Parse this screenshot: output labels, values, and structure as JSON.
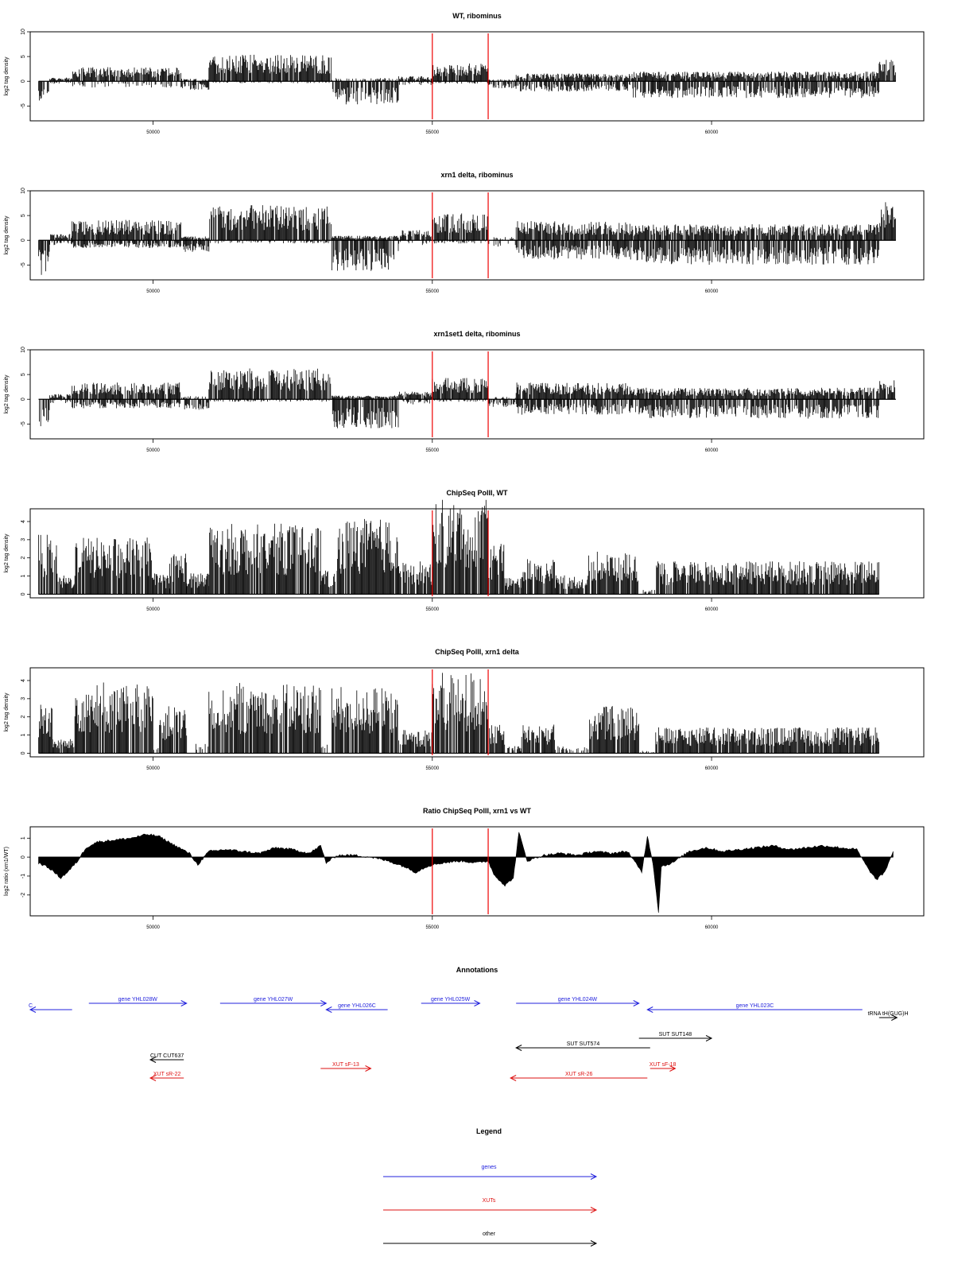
{
  "chart_data": [
    {
      "type": "bar",
      "title": "WT, ribominus",
      "xlabel": "",
      "ylabel": "log2 tag density",
      "xlim": [
        47800,
        63800
      ],
      "ylim": [
        -8,
        10
      ],
      "yticks": [
        -5,
        0,
        5,
        10
      ],
      "xticks": [
        50000,
        55000,
        60000
      ],
      "markers": [
        55000,
        56000
      ],
      "tick_labels": [
        "-5",
        "0",
        "5",
        "10",
        "50000",
        "55000",
        "60000"
      ],
      "segments": [
        {
          "start": 47950,
          "end": 48150,
          "pos": 0,
          "neg": -3.0
        },
        {
          "start": 48150,
          "end": 48550,
          "pos": 0.6,
          "neg": -0.5
        },
        {
          "start": 48550,
          "end": 50500,
          "pos": 2.2,
          "neg": -1.0
        },
        {
          "start": 50500,
          "end": 51000,
          "pos": 0.4,
          "neg": -1.4
        },
        {
          "start": 51000,
          "end": 53200,
          "pos": 4.2,
          "neg": -0.3
        },
        {
          "start": 53200,
          "end": 54400,
          "pos": 0.5,
          "neg": -3.6
        },
        {
          "start": 54400,
          "end": 55000,
          "pos": 0.8,
          "neg": -0.6
        },
        {
          "start": 55000,
          "end": 56000,
          "pos": 2.8,
          "neg": -0.4
        },
        {
          "start": 56000,
          "end": 56500,
          "pos": 0.3,
          "neg": -1.2
        },
        {
          "start": 56500,
          "end": 58600,
          "pos": 1.2,
          "neg": -1.6
        },
        {
          "start": 58600,
          "end": 63000,
          "pos": 1.5,
          "neg": -2.6
        },
        {
          "start": 63000,
          "end": 63300,
          "pos": 3.5,
          "neg": 0
        }
      ]
    },
    {
      "type": "bar",
      "title": "xrn1 delta, ribominus",
      "xlabel": "",
      "ylabel": "log2 tag density",
      "xlim": [
        47800,
        63800
      ],
      "ylim": [
        -8,
        10
      ],
      "yticks": [
        -5,
        0,
        5,
        10
      ],
      "xticks": [
        50000,
        55000,
        60000
      ],
      "markers": [
        55000,
        56000
      ],
      "tick_labels": [
        "-5",
        "0",
        "5",
        "10",
        "50000",
        "55000",
        "60000"
      ],
      "segments": [
        {
          "start": 47950,
          "end": 48150,
          "pos": 0,
          "neg": -5.5
        },
        {
          "start": 48150,
          "end": 48550,
          "pos": 1.0,
          "neg": -0.8
        },
        {
          "start": 48550,
          "end": 50500,
          "pos": 3.2,
          "neg": -1.2
        },
        {
          "start": 50500,
          "end": 51000,
          "pos": 0.6,
          "neg": -1.8
        },
        {
          "start": 51000,
          "end": 53200,
          "pos": 5.5,
          "neg": -0.5
        },
        {
          "start": 53200,
          "end": 54400,
          "pos": 0.7,
          "neg": -4.8
        },
        {
          "start": 54400,
          "end": 55000,
          "pos": 1.6,
          "neg": -0.8
        },
        {
          "start": 55000,
          "end": 56000,
          "pos": 4.2,
          "neg": -0.5
        },
        {
          "start": 56000,
          "end": 56500,
          "pos": 0.5,
          "neg": -1.0
        },
        {
          "start": 56500,
          "end": 58600,
          "pos": 3.0,
          "neg": -3.0
        },
        {
          "start": 58600,
          "end": 63000,
          "pos": 2.5,
          "neg": -3.8
        },
        {
          "start": 63000,
          "end": 63300,
          "pos": 6.0,
          "neg": 0
        }
      ]
    },
    {
      "type": "bar",
      "title": "xrn1set1 delta, ribominus",
      "xlabel": "",
      "ylabel": "log2 tag density",
      "xlim": [
        47800,
        63800
      ],
      "ylim": [
        -8,
        10
      ],
      "yticks": [
        -5,
        0,
        5,
        10
      ],
      "xticks": [
        50000,
        55000,
        60000
      ],
      "markers": [
        55000,
        56000
      ],
      "tick_labels": [
        "-5",
        "0",
        "5",
        "10",
        "50000",
        "55000",
        "60000"
      ],
      "segments": [
        {
          "start": 47950,
          "end": 48150,
          "pos": 0,
          "neg": -4.5
        },
        {
          "start": 48150,
          "end": 48550,
          "pos": 0.8,
          "neg": -0.6
        },
        {
          "start": 48550,
          "end": 50500,
          "pos": 2.6,
          "neg": -1.4
        },
        {
          "start": 50500,
          "end": 51000,
          "pos": 0.5,
          "neg": -1.8
        },
        {
          "start": 51000,
          "end": 53200,
          "pos": 4.8,
          "neg": -0.4
        },
        {
          "start": 53200,
          "end": 54400,
          "pos": 0.6,
          "neg": -4.5
        },
        {
          "start": 54400,
          "end": 55000,
          "pos": 1.2,
          "neg": -0.8
        },
        {
          "start": 55000,
          "end": 56000,
          "pos": 3.4,
          "neg": -0.4
        },
        {
          "start": 56000,
          "end": 56500,
          "pos": 0.4,
          "neg": -1.2
        },
        {
          "start": 56500,
          "end": 58600,
          "pos": 2.6,
          "neg": -2.4
        },
        {
          "start": 58600,
          "end": 63000,
          "pos": 1.8,
          "neg": -3.0
        },
        {
          "start": 63000,
          "end": 63300,
          "pos": 3.0,
          "neg": 0
        }
      ]
    },
    {
      "type": "bar",
      "title": "ChipSeq PolII, WT",
      "xlabel": "",
      "ylabel": "log2 tag density",
      "xlim": [
        47800,
        63800
      ],
      "ylim": [
        -0.2,
        4.7
      ],
      "yticks": [
        0,
        1,
        2,
        3,
        4
      ],
      "xticks": [
        50000,
        55000,
        60000
      ],
      "markers": [
        55000,
        56000
      ],
      "tick_labels": [
        "0",
        "1",
        "2",
        "3",
        "4",
        "50000",
        "55000",
        "60000"
      ],
      "segments": [
        {
          "start": 47950,
          "end": 48300,
          "pos": 2.6,
          "neg": 0
        },
        {
          "start": 48300,
          "end": 48600,
          "pos": 0.8,
          "neg": 0
        },
        {
          "start": 48600,
          "end": 50000,
          "pos": 2.4,
          "neg": 0
        },
        {
          "start": 50000,
          "end": 50300,
          "pos": 0.9,
          "neg": 0
        },
        {
          "start": 50300,
          "end": 50600,
          "pos": 1.8,
          "neg": 0
        },
        {
          "start": 50600,
          "end": 51000,
          "pos": 0.9,
          "neg": 0
        },
        {
          "start": 51000,
          "end": 53000,
          "pos": 3.0,
          "neg": 0
        },
        {
          "start": 53000,
          "end": 53300,
          "pos": 1.0,
          "neg": 0
        },
        {
          "start": 53300,
          "end": 54400,
          "pos": 3.2,
          "neg": 0
        },
        {
          "start": 54400,
          "end": 55000,
          "pos": 1.4,
          "neg": 0
        },
        {
          "start": 55000,
          "end": 56000,
          "pos": 4.0,
          "neg": 0
        },
        {
          "start": 56000,
          "end": 56300,
          "pos": 2.2,
          "neg": 0
        },
        {
          "start": 56300,
          "end": 56600,
          "pos": 0.7,
          "neg": 0
        },
        {
          "start": 56600,
          "end": 57200,
          "pos": 1.6,
          "neg": 0
        },
        {
          "start": 57200,
          "end": 57800,
          "pos": 0.8,
          "neg": 0
        },
        {
          "start": 57800,
          "end": 58700,
          "pos": 1.8,
          "neg": 0
        },
        {
          "start": 58700,
          "end": 59000,
          "pos": 0.2,
          "neg": 0
        },
        {
          "start": 59000,
          "end": 63000,
          "pos": 1.4,
          "neg": 0
        }
      ]
    },
    {
      "type": "bar",
      "title": "ChipSeq PolII, xrn1 delta",
      "xlabel": "",
      "ylabel": "log2 tag density",
      "xlim": [
        47800,
        63800
      ],
      "ylim": [
        -0.2,
        4.7
      ],
      "yticks": [
        0,
        1,
        2,
        3,
        4
      ],
      "xticks": [
        50000,
        55000,
        60000
      ],
      "markers": [
        55000,
        56000
      ],
      "tick_labels": [
        "0",
        "1",
        "2",
        "3",
        "4",
        "50000",
        "55000",
        "60000"
      ],
      "segments": [
        {
          "start": 47950,
          "end": 48200,
          "pos": 2.2,
          "neg": 0
        },
        {
          "start": 48200,
          "end": 48600,
          "pos": 0.6,
          "neg": 0
        },
        {
          "start": 48600,
          "end": 50000,
          "pos": 3.0,
          "neg": 0
        },
        {
          "start": 50000,
          "end": 50100,
          "pos": 0.4,
          "neg": 0
        },
        {
          "start": 50100,
          "end": 50600,
          "pos": 2.0,
          "neg": 0
        },
        {
          "start": 50600,
          "end": 51000,
          "pos": 0.4,
          "neg": 0
        },
        {
          "start": 51000,
          "end": 53000,
          "pos": 3.0,
          "neg": 0
        },
        {
          "start": 53000,
          "end": 53200,
          "pos": 0.4,
          "neg": 0
        },
        {
          "start": 53200,
          "end": 54400,
          "pos": 2.8,
          "neg": 0
        },
        {
          "start": 54400,
          "end": 55000,
          "pos": 1.0,
          "neg": 0
        },
        {
          "start": 55000,
          "end": 56000,
          "pos": 3.4,
          "neg": 0
        },
        {
          "start": 56000,
          "end": 56300,
          "pos": 1.2,
          "neg": 0
        },
        {
          "start": 56300,
          "end": 56600,
          "pos": 0.3,
          "neg": 0
        },
        {
          "start": 56600,
          "end": 57200,
          "pos": 1.3,
          "neg": 0
        },
        {
          "start": 57200,
          "end": 57800,
          "pos": 0.3,
          "neg": 0
        },
        {
          "start": 57800,
          "end": 58700,
          "pos": 2.0,
          "neg": 0
        },
        {
          "start": 58700,
          "end": 59000,
          "pos": 0.1,
          "neg": 0
        },
        {
          "start": 59000,
          "end": 63000,
          "pos": 1.1,
          "neg": 0
        }
      ]
    },
    {
      "type": "area",
      "title": "Ratio ChipSeq PolII, xrn1 vs WT",
      "xlabel": "",
      "ylabel": "log2 ratio (xrn1/WT)",
      "xlim": [
        47800,
        63800
      ],
      "ylim": [
        -3.1,
        1.6
      ],
      "yticks": [
        -2,
        -1,
        0,
        1
      ],
      "xticks": [
        50000,
        55000,
        60000
      ],
      "markers": [
        55000,
        56000
      ],
      "tick_labels": [
        "-2",
        "-1",
        "0",
        "1",
        "50000",
        "55000",
        "60000"
      ],
      "x": [
        47950,
        48150,
        48350,
        48500,
        48650,
        48800,
        49000,
        49300,
        49600,
        49900,
        50100,
        50400,
        50650,
        50800,
        51000,
        51300,
        51600,
        51900,
        52200,
        52500,
        52800,
        53000,
        53100,
        53300,
        53600,
        53900,
        54200,
        54500,
        54700,
        54900,
        55000,
        55200,
        55500,
        55800,
        56000,
        56100,
        56300,
        56450,
        56550,
        56700,
        57000,
        57300,
        57600,
        57900,
        58200,
        58500,
        58750,
        58850,
        58950,
        59050,
        59100,
        59300,
        59600,
        59900,
        60200,
        60500,
        60800,
        61100,
        61400,
        61700,
        62000,
        62300,
        62600,
        62800,
        62950,
        63100,
        63250
      ],
      "y": [
        -0.3,
        -0.6,
        -1.1,
        -0.7,
        -0.2,
        0.5,
        0.8,
        0.9,
        1.0,
        1.2,
        1.1,
        0.6,
        0.2,
        -0.4,
        0.3,
        0.4,
        0.3,
        0.2,
        0.5,
        0.4,
        0.2,
        0.6,
        -0.3,
        0.1,
        0.1,
        0.0,
        -0.2,
        -0.5,
        -0.8,
        -0.5,
        -0.4,
        -0.3,
        -0.2,
        -0.3,
        -0.2,
        -0.9,
        -1.5,
        -1.1,
        1.3,
        -0.2,
        0.1,
        0.2,
        0.1,
        0.3,
        0.2,
        0.3,
        -0.8,
        1.1,
        -0.3,
        -2.9,
        -0.5,
        -0.3,
        0.3,
        0.5,
        0.3,
        0.4,
        0.5,
        0.6,
        0.4,
        0.5,
        0.6,
        0.5,
        0.4,
        -0.6,
        -1.2,
        -0.8,
        0.3
      ]
    }
  ],
  "annotations": {
    "title": "Annotations",
    "features": [
      {
        "label": "C",
        "start": 47300,
        "end": 48550,
        "strand": "-",
        "kind": "gene",
        "row": 1
      },
      {
        "label": "gene YHL028W",
        "start": 48850,
        "end": 50600,
        "strand": "+",
        "kind": "gene",
        "row": 0
      },
      {
        "label": "gene YHL027W",
        "start": 51200,
        "end": 53100,
        "strand": "+",
        "kind": "gene",
        "row": 0
      },
      {
        "label": "gene YHL026C",
        "start": 53100,
        "end": 54200,
        "strand": "-",
        "kind": "gene",
        "row": 1
      },
      {
        "label": "gene YHL025W",
        "start": 54800,
        "end": 55850,
        "strand": "+",
        "kind": "gene",
        "row": 0
      },
      {
        "label": "gene YHL024W",
        "start": 56500,
        "end": 58700,
        "strand": "+",
        "kind": "gene",
        "row": 0
      },
      {
        "label": "gene YHL023C",
        "start": 58850,
        "end": 62700,
        "strand": "-",
        "kind": "gene",
        "row": 1
      },
      {
        "label": "tRNA tH(GUG)H",
        "start": 63000,
        "end": 63320,
        "strand": "+",
        "kind": "other",
        "row": 2
      },
      {
        "label": "SUT SUT148",
        "start": 58700,
        "end": 60000,
        "strand": "+",
        "kind": "other",
        "row": 3
      },
      {
        "label": "SUT SUT574",
        "start": 56500,
        "end": 58900,
        "strand": "-",
        "kind": "other",
        "row": 4
      },
      {
        "label": "CUT CUT637",
        "start": 49950,
        "end": 50550,
        "strand": "-",
        "kind": "other",
        "row": 5
      },
      {
        "label": "XUT sR-22",
        "start": 49950,
        "end": 50550,
        "strand": "-",
        "kind": "xut",
        "row": 7
      },
      {
        "label": "XUT sF-13",
        "start": 53000,
        "end": 53900,
        "strand": "+",
        "kind": "xut",
        "row": 6
      },
      {
        "label": "XUT sR-26",
        "start": 56400,
        "end": 58850,
        "strand": "-",
        "kind": "xut",
        "row": 7
      },
      {
        "label": "XUT sF-18",
        "start": 58900,
        "end": 59350,
        "strand": "+",
        "kind": "xut",
        "row": 6
      }
    ]
  },
  "legend": {
    "title": "Legend",
    "items": [
      {
        "label": "genes",
        "kind": "gene"
      },
      {
        "label": "XUTs",
        "kind": "xut"
      },
      {
        "label": "other",
        "kind": "other"
      }
    ]
  },
  "colors": {
    "gene": "#2222dd",
    "xut": "#dd1111",
    "other": "#000000",
    "marker": "#ee0000",
    "signal": "#000000"
  }
}
